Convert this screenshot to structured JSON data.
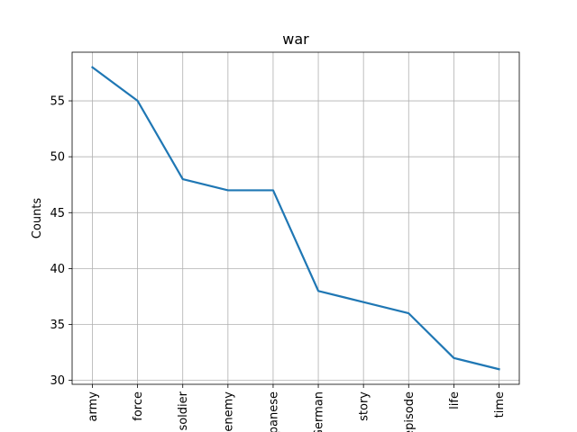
{
  "chart_data": {
    "type": "line",
    "title": "war",
    "xlabel": "",
    "ylabel": "Counts",
    "categories": [
      "army",
      "force",
      "soldier",
      "enemy",
      "Japanese",
      "German",
      "story",
      "episode",
      "life",
      "time"
    ],
    "series": [
      {
        "values": [
          58,
          55,
          48,
          47,
          47,
          38,
          37,
          36,
          32,
          31
        ]
      }
    ],
    "yticks": [
      30,
      35,
      40,
      45,
      50,
      55
    ],
    "ylim": [
      29.65,
      59.35
    ],
    "grid": true,
    "line_color": "#1f77b4"
  }
}
